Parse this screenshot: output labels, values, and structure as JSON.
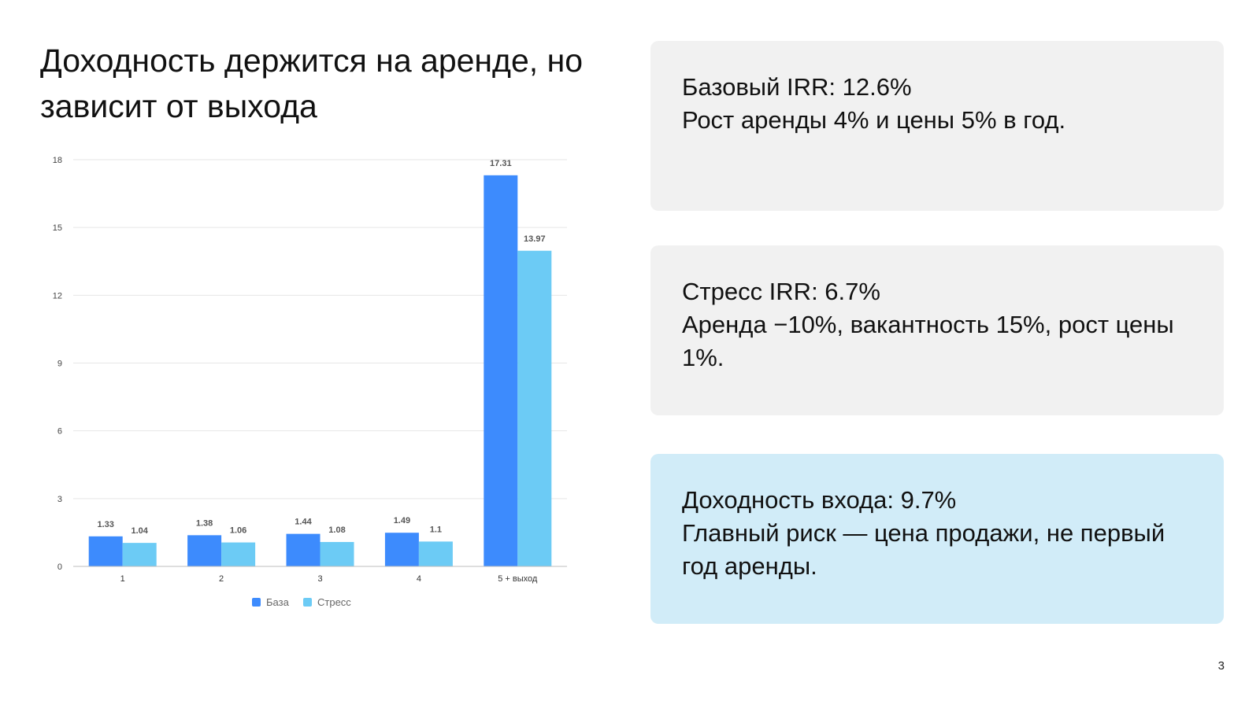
{
  "slide": {
    "title": "Доходность держится на аренде, но зависит от выхода",
    "page_number": "3"
  },
  "cards": [
    {
      "headline": "Базовый IRR: 12.6%",
      "detail": "Рост аренды 4% и цены 5% в год.",
      "background": "#f1f1f1"
    },
    {
      "headline": "Стресс IRR: 6.7%",
      "detail": "Аренда −10%, вакантность 15%, рост цены 1%.",
      "background": "#f1f1f1"
    },
    {
      "headline": "Доходность входа: 9.7%",
      "detail": "Главный риск — цена продажи, не первый год аренды.",
      "background": "#d1ecf8"
    }
  ],
  "chart_data": {
    "type": "bar",
    "categories": [
      "1",
      "2",
      "3",
      "4",
      "5 + выход"
    ],
    "series": [
      {
        "name": "База",
        "values": [
          1.33,
          1.38,
          1.44,
          1.49,
          17.31
        ],
        "color": "#3d8bfd"
      },
      {
        "name": "Стресс",
        "values": [
          1.04,
          1.06,
          1.08,
          1.1,
          13.97
        ],
        "color": "#6ccbf5"
      }
    ],
    "title": "",
    "xlabel": "",
    "ylabel": "",
    "ylim": [
      0,
      18
    ],
    "yticks": [
      0,
      3,
      6,
      9,
      12,
      15,
      18
    ],
    "grid": true,
    "legend_position": "bottom",
    "data_labels": true
  }
}
